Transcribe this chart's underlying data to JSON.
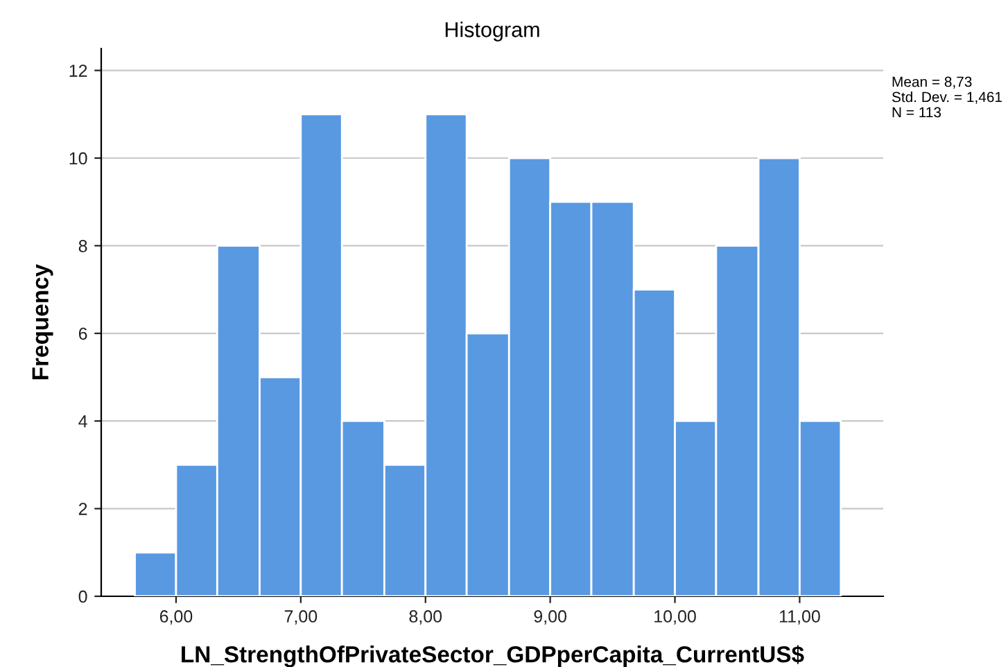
{
  "chart_data": {
    "type": "histogram",
    "title": "Histogram",
    "xlabel": "LN_StrengthOfPrivateSector_GDPperCapita_CurrentUS$",
    "ylabel": "Frequency",
    "bins": [
      5.67,
      6.0,
      6.33,
      6.67,
      7.0,
      7.33,
      7.67,
      8.0,
      8.33,
      8.67,
      9.0,
      9.33,
      9.67,
      10.0,
      10.33,
      10.67,
      11.0,
      11.33
    ],
    "values": [
      1,
      3,
      8,
      5,
      11,
      4,
      3,
      11,
      6,
      10,
      9,
      9,
      7,
      4,
      8,
      10,
      4
    ],
    "color": "#5899e2",
    "xlim": [
      5.4,
      11.67
    ],
    "ylim": [
      0,
      12.5
    ],
    "xticks": [
      {
        "value": 6,
        "label": "6,00"
      },
      {
        "value": 7,
        "label": "7,00"
      },
      {
        "value": 8,
        "label": "8,00"
      },
      {
        "value": 9,
        "label": "9,00"
      },
      {
        "value": 10,
        "label": "10,00"
      },
      {
        "value": 11,
        "label": "11,00"
      }
    ],
    "yticks": [
      0,
      2,
      4,
      6,
      8,
      10,
      12
    ],
    "grid": "y",
    "annotations": [
      "Mean = 8,73",
      "Std. Dev. = 1,461",
      "N = 113"
    ]
  }
}
